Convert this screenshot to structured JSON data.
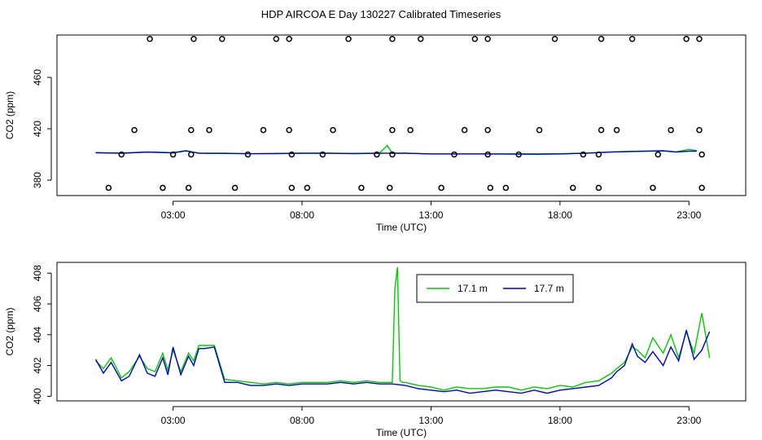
{
  "title": "HDP AIRCOA E  Day 130227  Calibrated Timeseries",
  "colors": {
    "sensor_17_1": "#00cc00",
    "sensor_17_7": "#0000cc",
    "frame": "#000000",
    "markers": "#000000"
  },
  "chart_data": [
    {
      "type": "scatter",
      "xlabel": "Time (UTC)",
      "ylabel": "CO2 (ppm)",
      "xlim": [
        -1.5,
        25.2
      ],
      "ylim": [
        368,
        493
      ],
      "x_ticks": [
        3,
        8,
        13,
        18,
        23
      ],
      "x_tick_labels": [
        "03:00",
        "08:00",
        "13:00",
        "18:00",
        "23:00"
      ],
      "y_ticks": [
        380,
        420,
        460
      ],
      "y_tick_labels": [
        "380",
        "420",
        "460"
      ],
      "grid": false,
      "legend": "none",
      "markers": {
        "name": "calibration-standards",
        "points": [
          {
            "x": 2.1,
            "y": 490
          },
          {
            "x": 3.8,
            "y": 490
          },
          {
            "x": 4.9,
            "y": 490
          },
          {
            "x": 7.0,
            "y": 490
          },
          {
            "x": 7.5,
            "y": 490
          },
          {
            "x": 9.8,
            "y": 490
          },
          {
            "x": 11.5,
            "y": 490
          },
          {
            "x": 12.6,
            "y": 490
          },
          {
            "x": 14.7,
            "y": 490
          },
          {
            "x": 15.2,
            "y": 490
          },
          {
            "x": 17.8,
            "y": 490
          },
          {
            "x": 19.6,
            "y": 490
          },
          {
            "x": 20.8,
            "y": 490
          },
          {
            "x": 22.9,
            "y": 490
          },
          {
            "x": 23.4,
            "y": 490
          },
          {
            "x": 1.5,
            "y": 419
          },
          {
            "x": 3.7,
            "y": 419
          },
          {
            "x": 4.4,
            "y": 419
          },
          {
            "x": 6.5,
            "y": 419
          },
          {
            "x": 7.5,
            "y": 419
          },
          {
            "x": 9.2,
            "y": 419
          },
          {
            "x": 11.5,
            "y": 419
          },
          {
            "x": 12.2,
            "y": 419
          },
          {
            "x": 14.3,
            "y": 419
          },
          {
            "x": 15.2,
            "y": 419
          },
          {
            "x": 17.2,
            "y": 419
          },
          {
            "x": 19.6,
            "y": 419
          },
          {
            "x": 20.2,
            "y": 419
          },
          {
            "x": 22.3,
            "y": 419
          },
          {
            "x": 23.4,
            "y": 419
          },
          {
            "x": 1.0,
            "y": 400
          },
          {
            "x": 3.0,
            "y": 400
          },
          {
            "x": 3.7,
            "y": 400
          },
          {
            "x": 5.9,
            "y": 400
          },
          {
            "x": 7.6,
            "y": 400
          },
          {
            "x": 8.8,
            "y": 400
          },
          {
            "x": 10.9,
            "y": 400
          },
          {
            "x": 11.5,
            "y": 400
          },
          {
            "x": 13.9,
            "y": 400
          },
          {
            "x": 15.2,
            "y": 400
          },
          {
            "x": 16.4,
            "y": 400
          },
          {
            "x": 18.9,
            "y": 400
          },
          {
            "x": 19.5,
            "y": 400
          },
          {
            "x": 21.8,
            "y": 400
          },
          {
            "x": 23.5,
            "y": 400
          },
          {
            "x": 0.5,
            "y": 374
          },
          {
            "x": 2.6,
            "y": 374
          },
          {
            "x": 3.6,
            "y": 374
          },
          {
            "x": 5.4,
            "y": 374
          },
          {
            "x": 7.6,
            "y": 374
          },
          {
            "x": 8.2,
            "y": 374
          },
          {
            "x": 10.3,
            "y": 374
          },
          {
            "x": 11.4,
            "y": 374
          },
          {
            "x": 13.4,
            "y": 374
          },
          {
            "x": 15.3,
            "y": 374
          },
          {
            "x": 15.9,
            "y": 374
          },
          {
            "x": 18.5,
            "y": 374
          },
          {
            "x": 19.5,
            "y": 374
          },
          {
            "x": 21.6,
            "y": 374
          },
          {
            "x": 23.5,
            "y": 374
          }
        ]
      },
      "series": [
        {
          "color": "#00cc00",
          "x": [
            0,
            1,
            2,
            3,
            3.5,
            4,
            5,
            6,
            7,
            8,
            9,
            10,
            11,
            11.3,
            11.5,
            12,
            13,
            14,
            15,
            16,
            17,
            18,
            19,
            20,
            21,
            22,
            22.5,
            23,
            23.3
          ],
          "y": [
            401.5,
            401,
            402,
            401.5,
            403,
            401,
            401,
            400.5,
            400.8,
            401,
            401,
            400.8,
            401,
            407,
            401,
            401,
            400.5,
            400.5,
            400.5,
            400.5,
            400.5,
            400.6,
            401,
            402,
            402.5,
            403,
            402,
            404,
            403
          ]
        },
        {
          "color": "#0000cc",
          "x": [
            0,
            1,
            2,
            3,
            3.5,
            4,
            5,
            6,
            7,
            8,
            9,
            10,
            11,
            11.5,
            12,
            13,
            14,
            15,
            16,
            17,
            18,
            19,
            20,
            21,
            22,
            22.5,
            23,
            23.3
          ],
          "y": [
            401.3,
            401,
            401.8,
            401.2,
            402.8,
            400.9,
            400.8,
            400.6,
            400.7,
            400.9,
            400.9,
            400.7,
            400.9,
            400.9,
            400.9,
            400.4,
            400.4,
            400.4,
            400.3,
            400.2,
            400.4,
            400.9,
            401.9,
            402.4,
            402.8,
            401.9,
            402.6,
            402.6
          ]
        }
      ]
    },
    {
      "type": "line",
      "xlabel": "Time (UTC)",
      "ylabel": "CO2 (ppm)",
      "xlim": [
        -1.5,
        25.2
      ],
      "ylim": [
        399.7,
        408.7
      ],
      "x_ticks": [
        3,
        8,
        13,
        18,
        23
      ],
      "x_tick_labels": [
        "03:00",
        "08:00",
        "13:00",
        "18:00",
        "23:00"
      ],
      "y_ticks": [
        400,
        402,
        404,
        406,
        408
      ],
      "y_tick_labels": [
        "400",
        "402",
        "404",
        "406",
        "408"
      ],
      "grid": false,
      "legend": "top-center",
      "series": [
        {
          "name": "17.1 m",
          "color": "#00cc00",
          "x": [
            0.0,
            0.3,
            0.6,
            1.0,
            1.3,
            1.7,
            2.0,
            2.3,
            2.6,
            2.8,
            3.0,
            3.3,
            3.6,
            3.8,
            4.0,
            4.2,
            4.6,
            5.0,
            5.5,
            6.0,
            6.5,
            7.0,
            7.5,
            8.0,
            8.5,
            9.0,
            9.5,
            10.0,
            10.5,
            11.0,
            11.5,
            11.6,
            11.7,
            11.8,
            11.9,
            12.0,
            12.5,
            13.0,
            13.5,
            14.0,
            14.5,
            15.0,
            15.5,
            16.0,
            16.5,
            17.0,
            17.5,
            18.0,
            18.5,
            19.0,
            19.5,
            20.0,
            20.2,
            20.5,
            20.8,
            21.0,
            21.3,
            21.6,
            22.0,
            22.3,
            22.6,
            22.9,
            23.2,
            23.5,
            23.8
          ],
          "y": [
            402.3,
            401.8,
            402.5,
            401.2,
            401.6,
            402.6,
            401.8,
            401.6,
            402.8,
            401.7,
            403.0,
            401.6,
            402.8,
            402.3,
            403.3,
            403.3,
            403.3,
            401.1,
            401.0,
            400.9,
            400.8,
            400.9,
            400.8,
            400.9,
            400.9,
            400.9,
            401.0,
            400.9,
            401.0,
            400.9,
            400.9,
            407.0,
            408.4,
            401.0,
            400.9,
            400.9,
            400.7,
            400.6,
            400.4,
            400.6,
            400.5,
            400.5,
            400.6,
            400.6,
            400.4,
            400.6,
            400.5,
            400.7,
            400.6,
            400.9,
            401.0,
            401.5,
            401.8,
            402.2,
            403.2,
            403.0,
            402.5,
            403.8,
            402.8,
            404.0,
            402.5,
            404.2,
            402.8,
            405.4,
            402.5
          ]
        },
        {
          "name": "17.7 m",
          "color": "#0000cc",
          "x": [
            0.0,
            0.3,
            0.6,
            1.0,
            1.3,
            1.7,
            2.0,
            2.3,
            2.6,
            2.8,
            3.0,
            3.3,
            3.6,
            3.8,
            4.0,
            4.2,
            4.6,
            5.0,
            5.5,
            6.0,
            6.5,
            7.0,
            7.5,
            8.0,
            8.5,
            9.0,
            9.5,
            10.0,
            10.5,
            11.0,
            11.5,
            12.0,
            12.5,
            13.0,
            13.5,
            14.0,
            14.5,
            15.0,
            15.5,
            16.0,
            16.5,
            17.0,
            17.5,
            18.0,
            18.5,
            19.0,
            19.5,
            20.0,
            20.2,
            20.5,
            20.8,
            21.0,
            21.3,
            21.6,
            22.0,
            22.3,
            22.6,
            22.9,
            23.2,
            23.5,
            23.8
          ],
          "y": [
            402.4,
            401.5,
            402.2,
            401.0,
            401.3,
            402.7,
            401.5,
            401.3,
            402.5,
            401.4,
            403.2,
            401.4,
            402.6,
            402.0,
            403.1,
            403.1,
            403.2,
            400.9,
            400.9,
            400.7,
            400.7,
            400.8,
            400.7,
            400.8,
            400.8,
            400.8,
            400.9,
            400.8,
            400.9,
            400.8,
            400.8,
            400.7,
            400.5,
            400.4,
            400.3,
            400.4,
            400.2,
            400.3,
            400.4,
            400.3,
            400.2,
            400.4,
            400.2,
            400.4,
            400.5,
            400.6,
            400.7,
            401.2,
            401.6,
            402.0,
            403.4,
            402.6,
            402.2,
            402.9,
            402.0,
            403.2,
            402.3,
            404.3,
            402.4,
            403.0,
            404.2
          ]
        }
      ]
    }
  ]
}
